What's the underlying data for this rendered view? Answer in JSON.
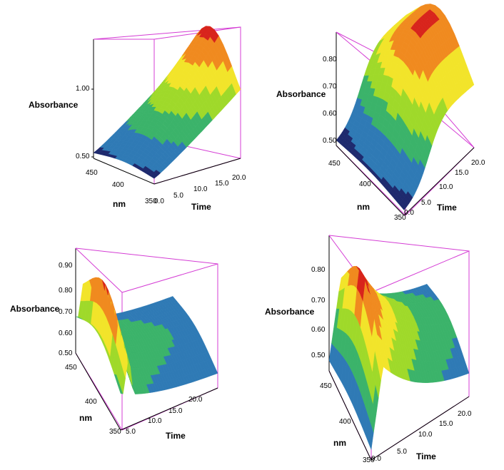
{
  "chart_data": [
    {
      "type": "surface3d",
      "xlabel": "Time",
      "ylabel": "nm",
      "zlabel": "Absorbance",
      "x_ticks": [
        "0.0",
        "5.0",
        "10.0",
        "15.0",
        "20.0"
      ],
      "y_ticks": [
        "350",
        "400",
        "450"
      ],
      "z_ticks": [
        "0.50",
        "1.00"
      ],
      "xlim": [
        0,
        20
      ],
      "ylim": [
        350,
        450
      ],
      "zlim": [
        0.5,
        1.35
      ],
      "shape": "ridge-rising",
      "colormap": [
        "#1e2a6e",
        "#2f7ab5",
        "#3bb36a",
        "#9fd92a",
        "#f2e42a",
        "#f08a1f",
        "#d8241c"
      ]
    },
    {
      "type": "surface3d",
      "xlabel": "Time",
      "ylabel": "nm",
      "zlabel": "Absorbance",
      "x_ticks": [
        "0.0",
        "5.0",
        "10.0",
        "15.0",
        "20.0"
      ],
      "y_ticks": [
        "350",
        "400",
        "450"
      ],
      "z_ticks": [
        "0.50",
        "0.60",
        "0.70",
        "0.80"
      ],
      "xlim": [
        0,
        20
      ],
      "ylim": [
        350,
        450
      ],
      "zlim": [
        0.5,
        0.86
      ],
      "shape": "rise-plateau",
      "colormap": [
        "#1e2a6e",
        "#2f7ab5",
        "#3bb36a",
        "#9fd92a",
        "#f2e42a",
        "#f08a1f",
        "#d8241c"
      ]
    },
    {
      "type": "surface3d",
      "xlabel": "Time",
      "ylabel": "nm",
      "zlabel": "Absorbance",
      "x_ticks": [
        "0.0",
        "5.0",
        "10.0",
        "15.0",
        "20.0"
      ],
      "y_ticks": [
        "350",
        "400",
        "450"
      ],
      "z_ticks": [
        "0.50",
        "0.60",
        "0.70",
        "0.80",
        "0.90"
      ],
      "xlim": [
        0,
        20
      ],
      "ylim": [
        350,
        450
      ],
      "zlim": [
        0.5,
        0.95
      ],
      "shape": "sharp-peak-decay",
      "colormap": [
        "#1e2a6e",
        "#2f7ab5",
        "#3bb36a",
        "#9fd92a",
        "#f2e42a",
        "#f08a1f",
        "#d8241c"
      ]
    },
    {
      "type": "surface3d",
      "xlabel": "Time",
      "ylabel": "nm",
      "zlabel": "Absorbance",
      "x_ticks": [
        "0.0",
        "5.0",
        "10.0",
        "15.0",
        "20.0"
      ],
      "y_ticks": [
        "350",
        "400",
        "450"
      ],
      "z_ticks": [
        "0.50",
        "0.60",
        "0.70",
        "0.80"
      ],
      "xlim": [
        0,
        20
      ],
      "ylim": [
        350,
        450
      ],
      "zlim": [
        0.5,
        0.86
      ],
      "shape": "peak-decay",
      "colormap": [
        "#1e2a6e",
        "#2f7ab5",
        "#3bb36a",
        "#9fd92a",
        "#f2e42a",
        "#f08a1f",
        "#d8241c"
      ]
    }
  ],
  "colors": {
    "box": "#d43cd4",
    "axis": "#000000",
    "background": "#ffffff"
  }
}
